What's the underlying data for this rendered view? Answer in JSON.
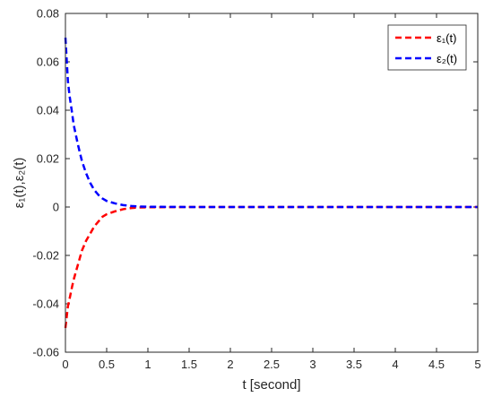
{
  "chart_data": {
    "type": "line",
    "title": "",
    "xlabel": "t  [second]",
    "ylabel": "ε₁(t),ε₂(t)",
    "xlim": [
      0,
      5
    ],
    "ylim": [
      -0.06,
      0.08
    ],
    "x_ticks": [
      0,
      0.5,
      1,
      1.5,
      2,
      2.5,
      3,
      3.5,
      4,
      4.5,
      5
    ],
    "y_ticks": [
      -0.06,
      -0.04,
      -0.02,
      0,
      0.02,
      0.04,
      0.06,
      0.08
    ],
    "x_tick_labels": [
      "0",
      "0.5",
      "1",
      "1.5",
      "2",
      "2.5",
      "3",
      "3.5",
      "4",
      "4.5",
      "5"
    ],
    "y_tick_labels": [
      "-0.06",
      "-0.04",
      "-0.02",
      "0",
      "0.02",
      "0.04",
      "0.06",
      "0.08"
    ],
    "grid": false,
    "legend_position": "top-right",
    "series": [
      {
        "name": "ε₁(t)",
        "color": "#ff0000",
        "line_style": "dashed",
        "x": [
          0,
          0.01,
          0.02,
          0.03,
          0.05,
          0.08,
          0.1,
          0.15,
          0.2,
          0.25,
          0.3,
          0.35,
          0.4,
          0.45,
          0.5,
          0.6,
          0.7,
          0.8,
          0.9,
          1,
          1.5,
          2,
          3,
          4,
          5
        ],
        "values": [
          -0.05,
          -0.047,
          -0.044,
          -0.041,
          -0.038,
          -0.033,
          -0.03,
          -0.024,
          -0.018,
          -0.014,
          -0.011,
          -0.008,
          -0.006,
          -0.004,
          -0.003,
          -0.0018,
          -0.0009,
          -0.0004,
          -0.0002,
          -0.0001,
          0,
          0,
          0,
          0,
          0
        ]
      },
      {
        "name": "ε₂(t)",
        "color": "#0000ff",
        "line_style": "dashed",
        "x": [
          0,
          0.01,
          0.02,
          0.03,
          0.05,
          0.08,
          0.1,
          0.15,
          0.2,
          0.25,
          0.3,
          0.35,
          0.4,
          0.45,
          0.5,
          0.6,
          0.7,
          0.8,
          0.9,
          1,
          1.5,
          2,
          3,
          4,
          5
        ],
        "values": [
          0.07,
          0.064,
          0.058,
          0.052,
          0.046,
          0.039,
          0.034,
          0.026,
          0.019,
          0.014,
          0.01,
          0.007,
          0.005,
          0.0035,
          0.0025,
          0.0015,
          0.0008,
          0.0004,
          0.0002,
          0.0001,
          0,
          0,
          0,
          0,
          0
        ]
      }
    ]
  }
}
